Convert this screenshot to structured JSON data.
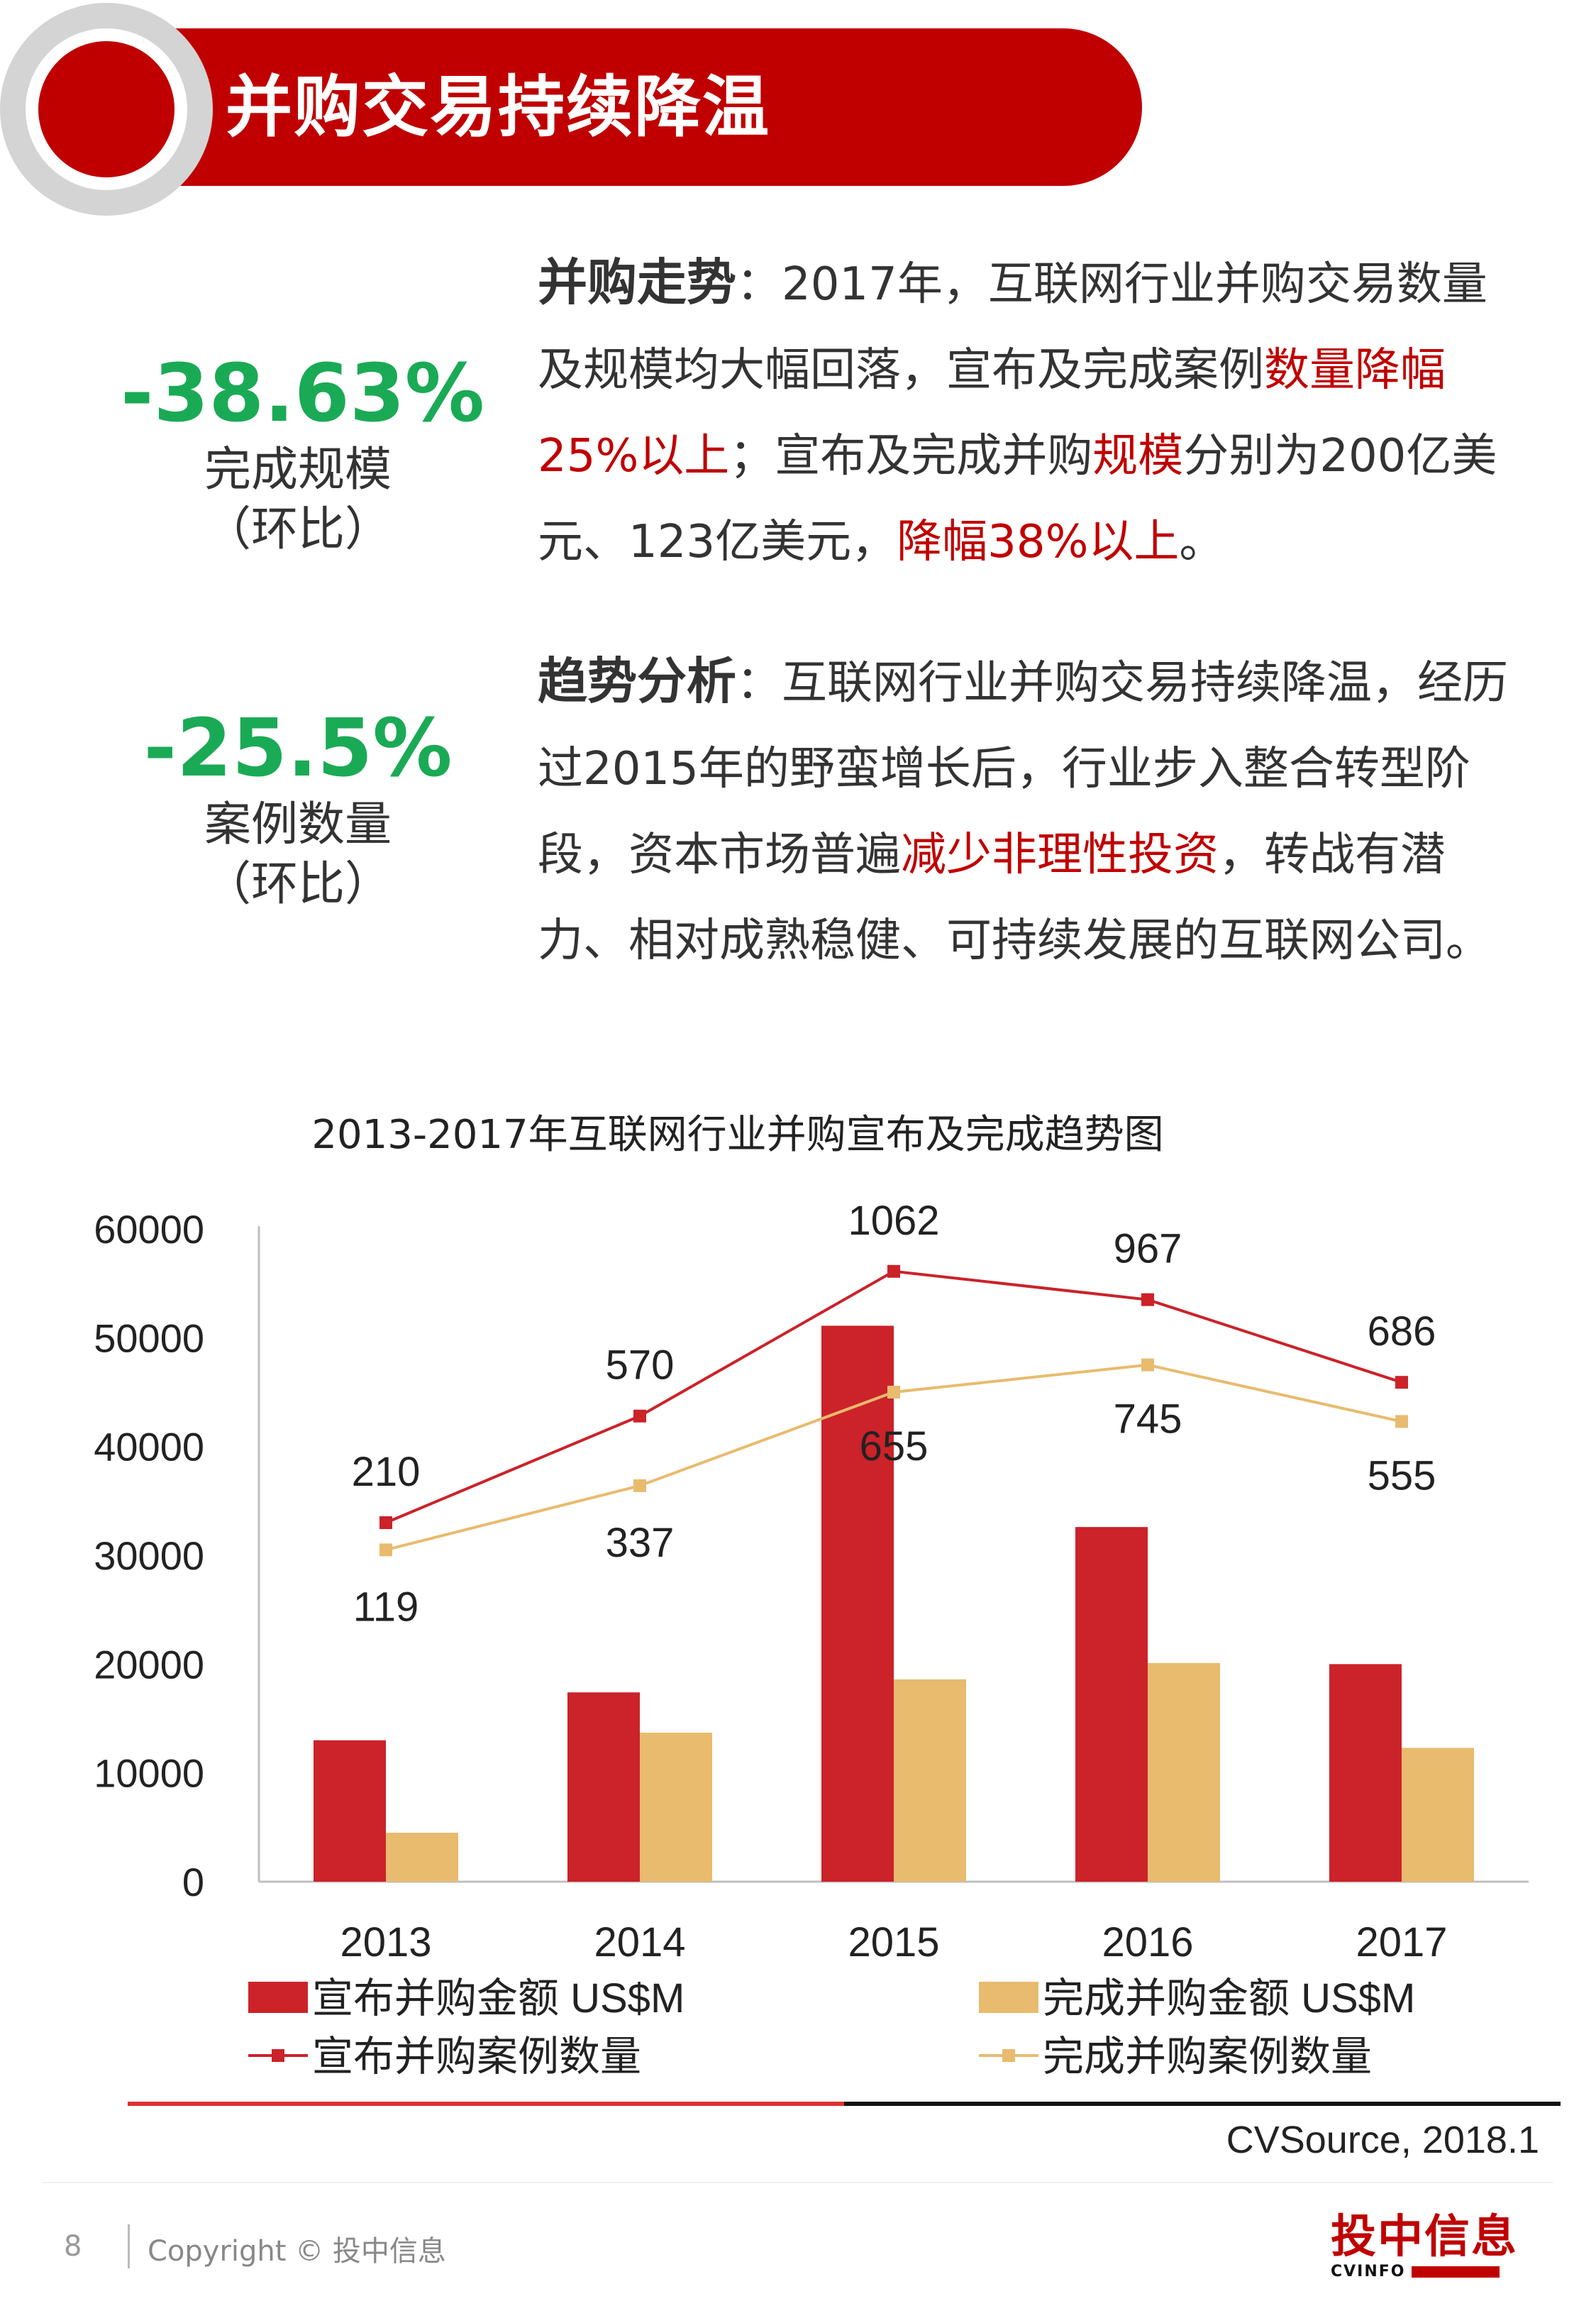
{
  "header": {
    "title": "并购交易持续降温"
  },
  "stats": [
    {
      "value": "-38.63%",
      "label": "完成规模",
      "note": "（环比）"
    },
    {
      "value": "-25.5%",
      "label": "案例数量",
      "note": "（环比）"
    }
  ],
  "paragraphs": {
    "p1": {
      "head": "并购走势",
      "t1": "：2017年，互联网行业并购交易数量及规模均大幅回落，宣布及完成案例",
      "h1": "数量降幅25%以上",
      "t2": "；宣布及完成并购",
      "h2": "规模",
      "t3": "分别为200亿美元、123亿美元，",
      "h3": "降幅38%以上",
      "t4": "。"
    },
    "p2": {
      "head": "趋势分析",
      "t1": "：互联网行业并购交易持续降温，经历过2015年的野蛮增长后，行业步入整合转型阶段，资本市场普遍",
      "h1": "减少非理性投资",
      "t2": "，转战有潜力、相对成熟稳健、可持续发展的互联网公司。"
    }
  },
  "chart_data": {
    "type": "bar",
    "title": "2013-2017年互联网行业并购宣布及完成趋势图",
    "categories": [
      "2013",
      "2014",
      "2015",
      "2016",
      "2017"
    ],
    "ylim": [
      0,
      60000
    ],
    "yticks": [
      "0",
      "10000",
      "20000",
      "30000",
      "40000",
      "50000",
      "60000"
    ],
    "grid": false,
    "legend_position": "bottom",
    "series": [
      {
        "name": "宣布并购金额 US$M",
        "kind": "bar",
        "color": "#cc2229",
        "values": [
          13000,
          17400,
          51100,
          32600,
          20000
        ]
      },
      {
        "name": "完成并购金额 US$M",
        "kind": "bar",
        "color": "#e8bb6e",
        "values": [
          4500,
          13700,
          18600,
          20100,
          12300
        ]
      },
      {
        "name": "宣布并购案例数量",
        "kind": "line",
        "color": "#cc2229",
        "counts": [
          210,
          570,
          1062,
          967,
          686
        ],
        "plot_values": [
          33000,
          42800,
          56100,
          53500,
          45900
        ]
      },
      {
        "name": "完成并购案例数量",
        "kind": "line",
        "color": "#e8bb6e",
        "counts": [
          119,
          337,
          655,
          745,
          555
        ],
        "plot_values": [
          30500,
          36400,
          45000,
          47500,
          42300
        ]
      }
    ]
  },
  "source": "CVSource, 2018.1",
  "footer": {
    "page_number": "8",
    "copyright": "Copyright © 投中信息",
    "logo_main": "投中信息",
    "logo_sub": "CVINFO"
  }
}
